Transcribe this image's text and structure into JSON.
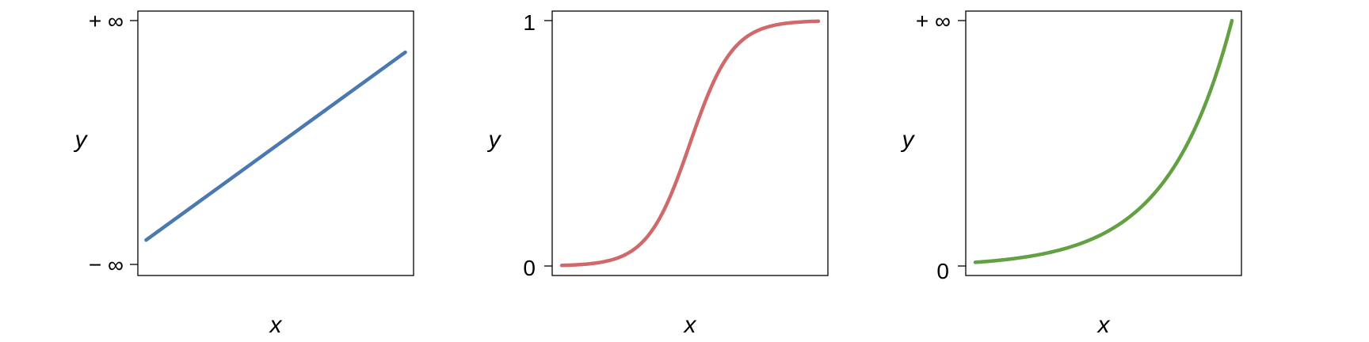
{
  "chart_data": [
    {
      "type": "line",
      "xlabel": "x",
      "ylabel": "y",
      "color": "#4a78b0",
      "yticks": [
        "− ∞",
        "+ ∞"
      ],
      "xlim": [
        0,
        1
      ],
      "ylim": [
        0,
        1
      ],
      "series": [
        {
          "x": [
            0.03,
            0.97
          ],
          "y": [
            0.1,
            0.87
          ]
        }
      ]
    },
    {
      "type": "line",
      "xlabel": "x",
      "ylabel": "y",
      "color": "#d06a6a",
      "yticks": [
        "0",
        "1"
      ],
      "xlim": [
        -6,
        6
      ],
      "ylim": [
        0,
        1
      ],
      "series": [
        {
          "function": "logistic",
          "x_range": [
            -6,
            6
          ]
        }
      ]
    },
    {
      "type": "line",
      "xlabel": "x",
      "ylabel": "y",
      "color": "#62a042",
      "yticks": [
        "0",
        "+ ∞"
      ],
      "xlim": [
        0,
        4
      ],
      "ylim": [
        0,
        1
      ],
      "series": [
        {
          "function": "exponential",
          "x_range": [
            0,
            4
          ]
        }
      ]
    }
  ]
}
